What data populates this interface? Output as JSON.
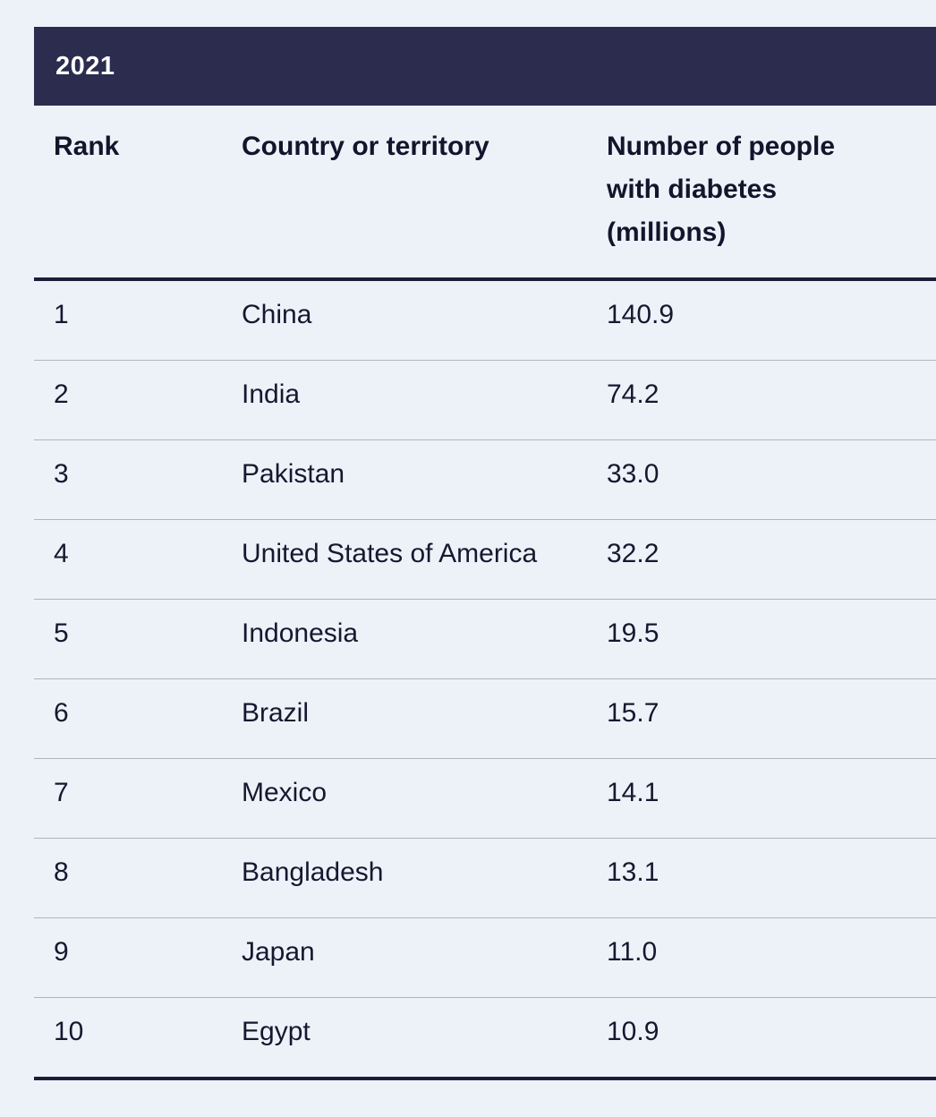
{
  "table": {
    "title": "2021",
    "columns": {
      "rank": "Rank",
      "country": "Country or territory",
      "number": "Number of people with diabetes (millions)"
    },
    "rows": [
      {
        "rank": "1",
        "country": "China",
        "value": "140.9"
      },
      {
        "rank": "2",
        "country": "India",
        "value": "74.2"
      },
      {
        "rank": "3",
        "country": "Pakistan",
        "value": "33.0"
      },
      {
        "rank": "4",
        "country": "United States of America",
        "value": "32.2"
      },
      {
        "rank": "5",
        "country": "Indonesia",
        "value": "19.5"
      },
      {
        "rank": "6",
        "country": "Brazil",
        "value": "15.7"
      },
      {
        "rank": "7",
        "country": "Mexico",
        "value": "14.1"
      },
      {
        "rank": "8",
        "country": "Bangladesh",
        "value": "13.1"
      },
      {
        "rank": "9",
        "country": "Japan",
        "value": "11.0"
      },
      {
        "rank": "10",
        "country": "Egypt",
        "value": "10.9"
      }
    ]
  },
  "chart_data": {
    "type": "table",
    "title": "2021",
    "columns": [
      "Rank",
      "Country or territory",
      "Number of people with diabetes (millions)"
    ],
    "rows": [
      [
        1,
        "China",
        140.9
      ],
      [
        2,
        "India",
        74.2
      ],
      [
        3,
        "Pakistan",
        33.0
      ],
      [
        4,
        "United States of America",
        32.2
      ],
      [
        5,
        "Indonesia",
        19.5
      ],
      [
        6,
        "Brazil",
        15.7
      ],
      [
        7,
        "Mexico",
        14.1
      ],
      [
        8,
        "Bangladesh",
        13.1
      ],
      [
        9,
        "Japan",
        11.0
      ],
      [
        10,
        "Egypt",
        10.9
      ]
    ]
  },
  "colors": {
    "background": "#edf2f9",
    "band": "#2b2c4e",
    "text": "#17172f",
    "thick_rule": "#1d1d3a",
    "separator": "#b0b4bd"
  }
}
